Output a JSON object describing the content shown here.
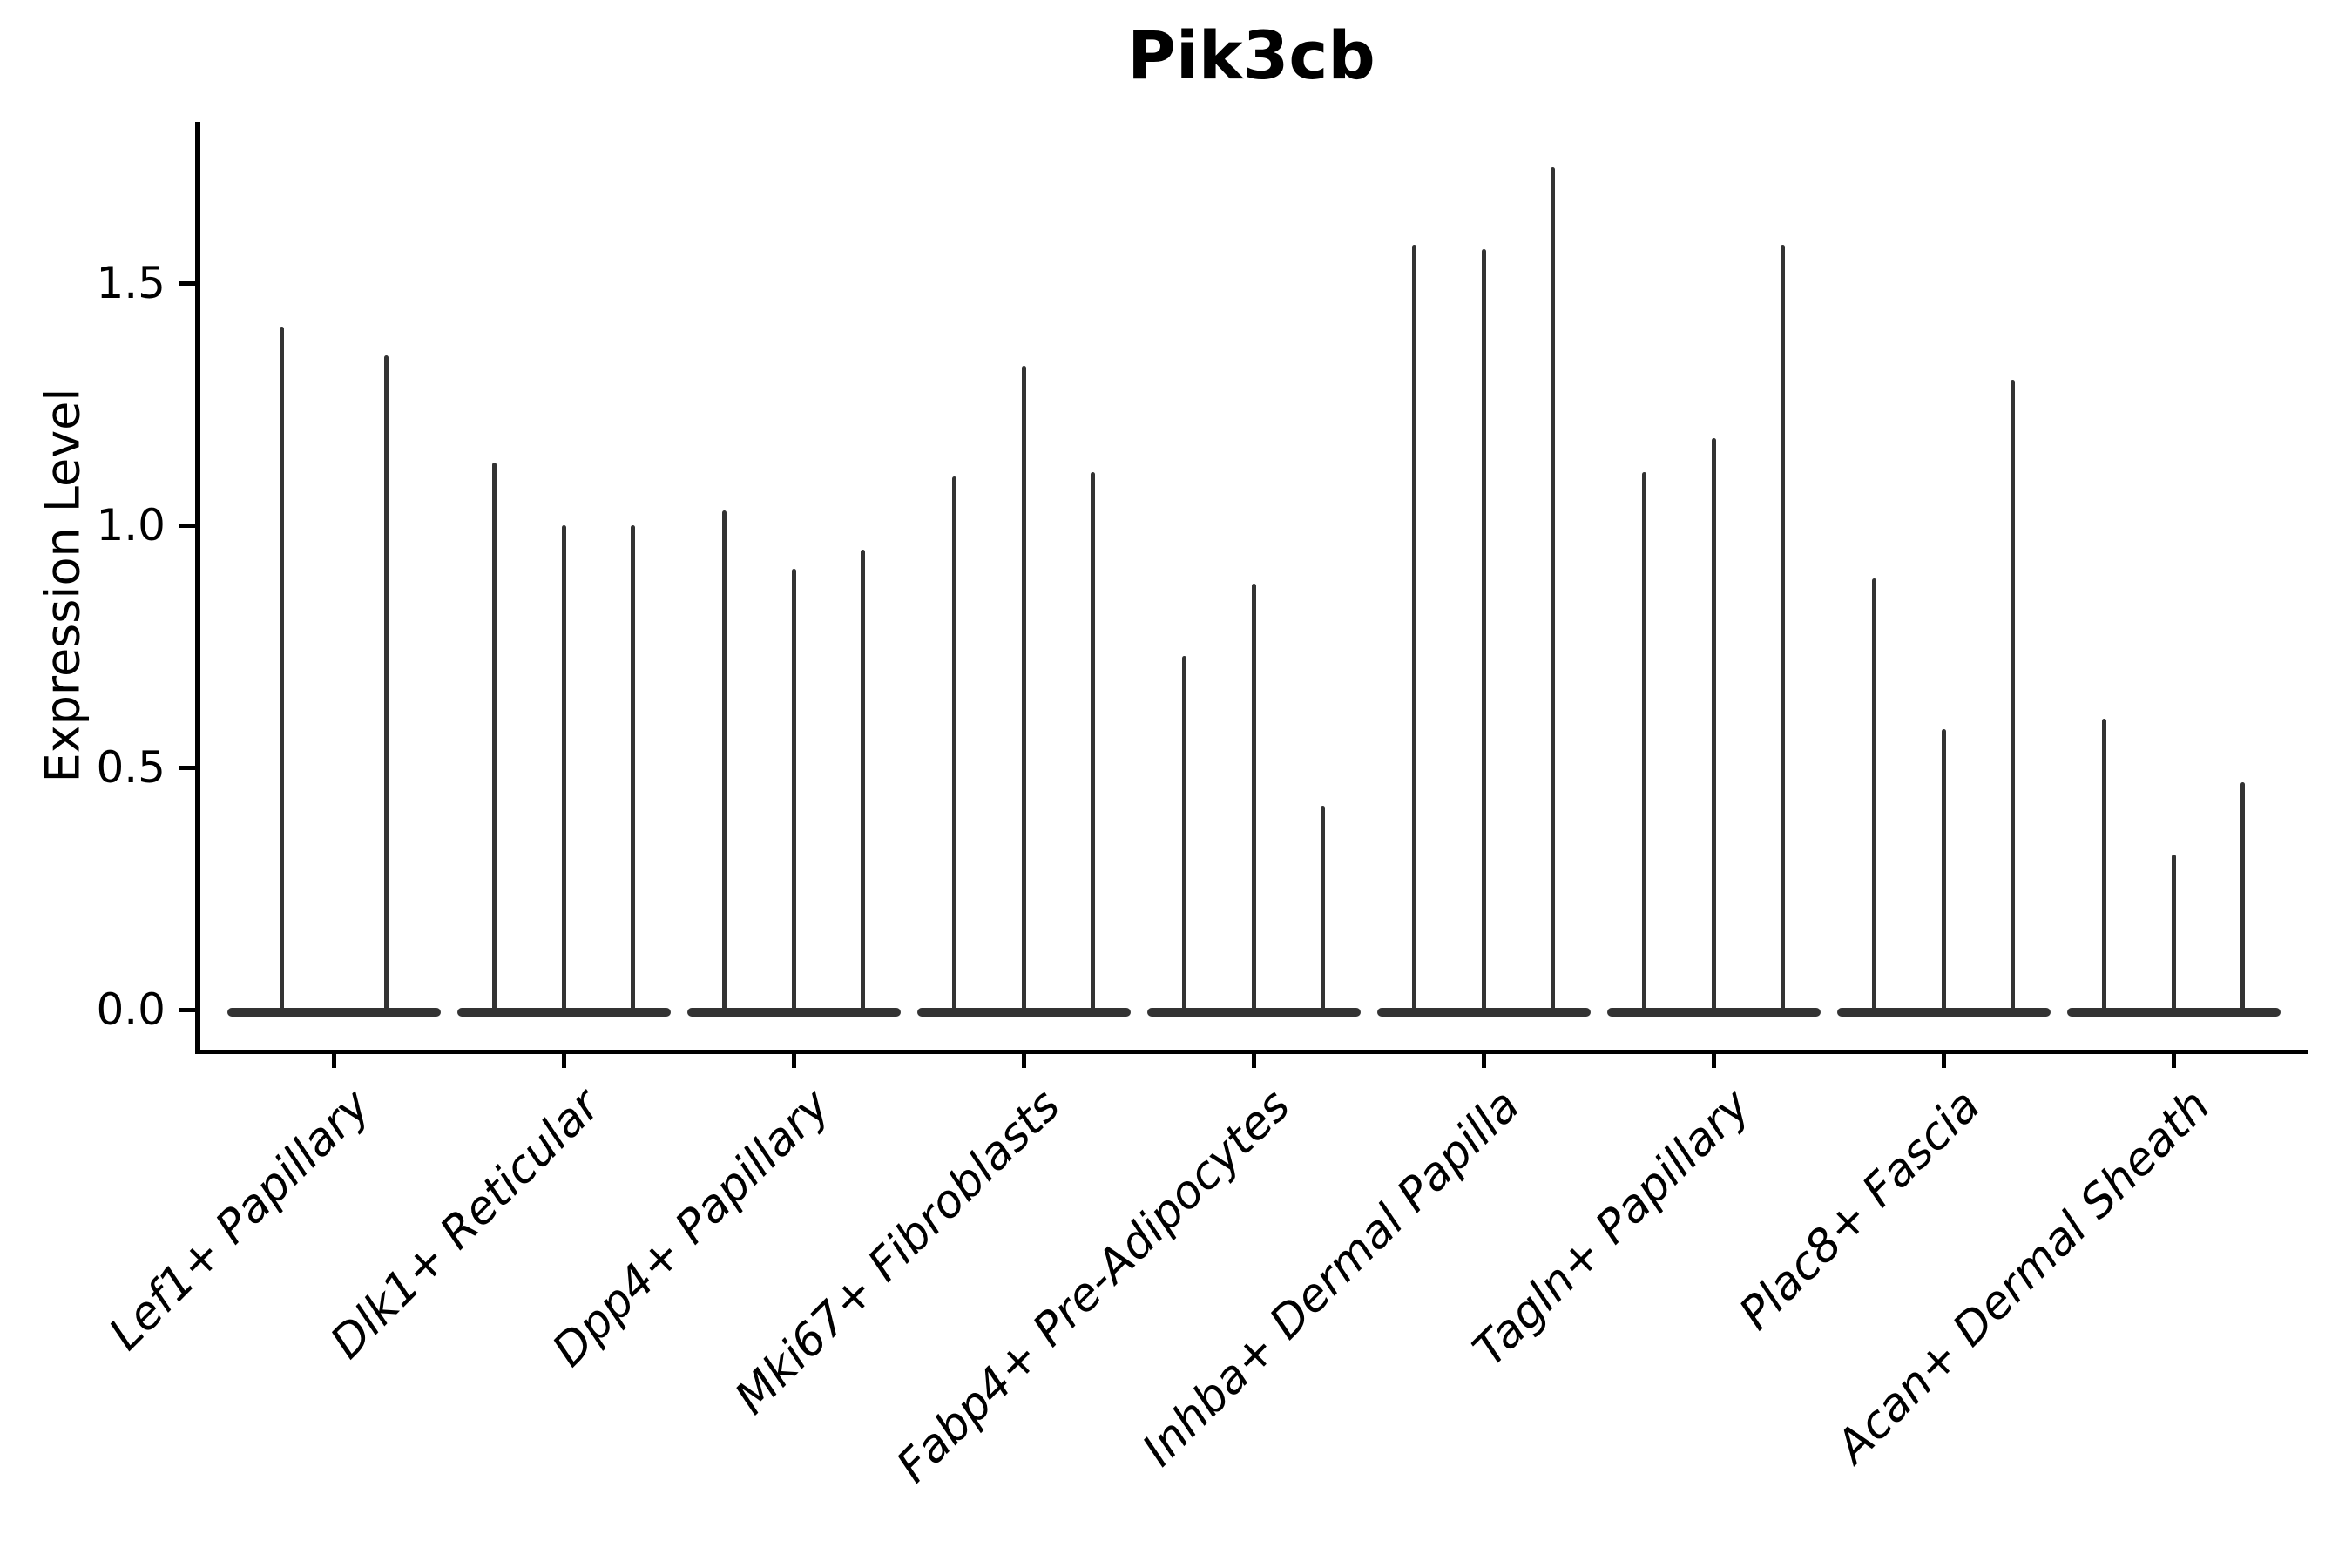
{
  "title": "Pik3cb",
  "y_axis": {
    "label": "Expression Level",
    "tick_labels": [
      "0.0",
      "0.5",
      "1.0",
      "1.5"
    ],
    "tick_values": [
      0.0,
      0.5,
      1.0,
      1.5
    ]
  },
  "chart_data": {
    "type": "violin",
    "title": "Pik3cb",
    "xlabel": "",
    "ylabel": "Expression Level",
    "ylim": [
      -0.09,
      1.83
    ],
    "grid": false,
    "legend": "none",
    "violin_color": "#333333",
    "note": "Each category shows thin violins (mostly-zero expression with narrow peaks); values are the max expression level reached by each violin spike",
    "categories": [
      "Lef1+ Papillary",
      "Dlk1+ Reticular",
      "Dpp4+ Papillary",
      "Mki67+ Fibroblasts",
      "Fabp4+ Pre-Adipocytes",
      "Inhba+ Dermal Papilla",
      "Tagln+ Papillary",
      "Plac8+ Fascia",
      "Acan+ Dermal Sheath"
    ],
    "series": [
      {
        "category": "Lef1+ Papillary",
        "spike_maxima": [
          1.41,
          1.35
        ]
      },
      {
        "category": "Dlk1+ Reticular",
        "spike_maxima": [
          1.13,
          1.0,
          1.0
        ]
      },
      {
        "category": "Dpp4+ Papillary",
        "spike_maxima": [
          1.03,
          0.91,
          0.95
        ]
      },
      {
        "category": "Mki67+ Fibroblasts",
        "spike_maxima": [
          1.1,
          1.33,
          1.11
        ]
      },
      {
        "category": "Fabp4+ Pre-Adipocytes",
        "spike_maxima": [
          0.73,
          0.88,
          0.42
        ]
      },
      {
        "category": "Inhba+ Dermal Papilla",
        "spike_maxima": [
          1.58,
          1.57,
          1.74
        ]
      },
      {
        "category": "Tagln+ Papillary",
        "spike_maxima": [
          1.11,
          1.18,
          1.58
        ]
      },
      {
        "category": "Plac8+ Fascia",
        "spike_maxima": [
          0.89,
          0.58,
          1.3
        ]
      },
      {
        "category": "Acan+ Dermal Sheath",
        "spike_maxima": [
          0.6,
          0.32,
          0.47
        ]
      }
    ]
  }
}
